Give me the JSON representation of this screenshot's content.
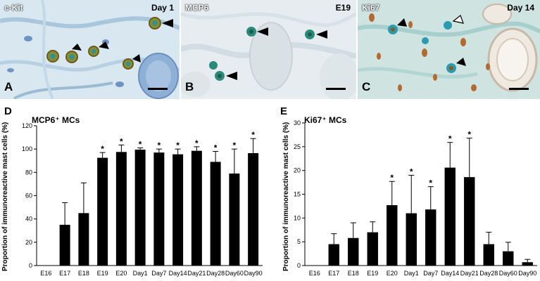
{
  "panels": [
    {
      "letter": "A",
      "left_label": "c-Kit",
      "right_label": "Day 1"
    },
    {
      "letter": "B",
      "left_label": "MCP6",
      "right_label": "E19"
    },
    {
      "letter": "C",
      "left_label": "Ki67",
      "right_label": "Day 14"
    }
  ],
  "chart_data": [
    {
      "type": "bar",
      "panel_letter": "D",
      "title": "MCP6⁺ MCs",
      "ylabel": "Proportion of immunoreactive mast cells (%)",
      "xlabel": "",
      "categories": [
        "E16",
        "E17",
        "E18",
        "E19",
        "E20",
        "Day1",
        "Day7",
        "Day14",
        "Day21",
        "Day28",
        "Day60",
        "Day90"
      ],
      "values": [
        0,
        35,
        45,
        92.5,
        97.5,
        99.5,
        97,
        95.5,
        98.5,
        89,
        79,
        96.5
      ],
      "errors": [
        0,
        19,
        26,
        4.5,
        6,
        1.5,
        3,
        4.5,
        3.5,
        9,
        21,
        12.5
      ],
      "significant": [
        false,
        false,
        false,
        true,
        true,
        true,
        true,
        true,
        true,
        true,
        true,
        true
      ],
      "significance_marker": "*",
      "ylim": [
        0,
        120
      ],
      "yticks": [
        0,
        20,
        40,
        60,
        80,
        100,
        120
      ],
      "grid": false,
      "color": "#000000"
    },
    {
      "type": "bar",
      "panel_letter": "E",
      "title": "Ki67⁺ MCs",
      "ylabel": "Proportion of immunoreactive mast cells (%)",
      "xlabel": "",
      "categories": [
        "E16",
        "E17",
        "E18",
        "E19",
        "E20",
        "Day1",
        "Day7",
        "Day14",
        "Day21",
        "Day28",
        "Day60",
        "Day90"
      ],
      "values": [
        0,
        4.5,
        5.8,
        7.0,
        12.7,
        11.0,
        11.8,
        20.6,
        18.6,
        4.5,
        3.0,
        0.7
      ],
      "errors": [
        0,
        2.2,
        3.2,
        2.2,
        5.0,
        8.0,
        4.8,
        5.3,
        8.2,
        2.5,
        1.9,
        0.6
      ],
      "significant": [
        false,
        false,
        false,
        false,
        true,
        true,
        true,
        true,
        true,
        false,
        false,
        false
      ],
      "significance_marker": "*",
      "ylim": [
        0,
        30
      ],
      "yticks": [
        0,
        5,
        10,
        15,
        20,
        25,
        30
      ],
      "grid": false,
      "color": "#000000"
    }
  ]
}
